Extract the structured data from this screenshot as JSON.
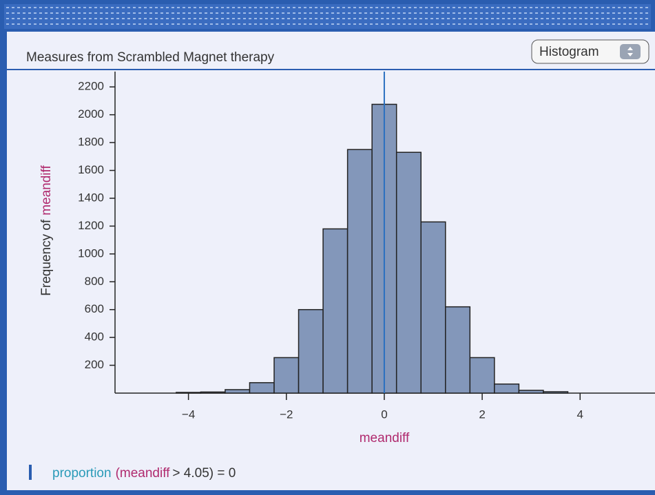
{
  "chart_data": {
    "type": "histogram",
    "title": "Measures from Scrambled Magnet therapy",
    "view_menu": "Histogram",
    "y_label": "Frequency of",
    "y_label_var": "meandiff",
    "x_label": "meandiff",
    "bins": [
      -4.25,
      -3.75,
      -3.25,
      -2.75,
      -2.25,
      -1.75,
      -1.25,
      -0.75,
      -0.25,
      0.25,
      0.75,
      1.25,
      1.75,
      2.25,
      2.75,
      3.25,
      3.75
    ],
    "values": [
      5,
      8,
      25,
      75,
      255,
      600,
      1180,
      1750,
      2075,
      1730,
      1230,
      620,
      255,
      65,
      20,
      10
    ],
    "color": "#8397ba",
    "xlim": [
      -5.5,
      5.53
    ],
    "ylim": [
      0,
      2310
    ],
    "xticks": [
      {
        "value": -4,
        "label": "−4"
      },
      {
        "value": -2,
        "label": "−2"
      },
      0,
      2,
      4
    ],
    "yticks": [
      200,
      400,
      600,
      800,
      1000,
      1200,
      1400,
      1600,
      1800,
      2000,
      2200
    ],
    "reference_line": 0,
    "formula": [
      "proportion",
      "(",
      "meandiff",
      "> 4.05) = 0"
    ]
  }
}
